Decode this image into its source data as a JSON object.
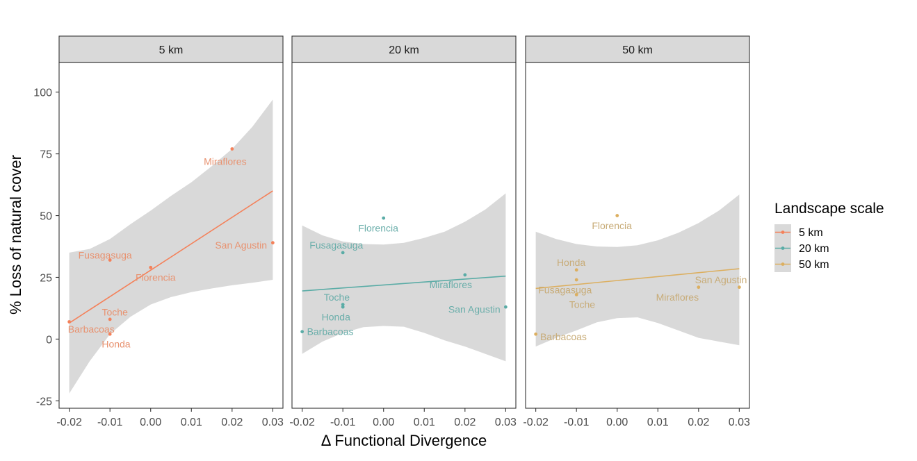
{
  "chart_data": {
    "type": "scatter",
    "xlabel": "Δ Functional Divergence",
    "ylabel": "% Loss of natural cover",
    "xlim": [
      -0.0225,
      0.0325
    ],
    "ylim": [
      -28,
      112
    ],
    "x_ticks": [
      -0.02,
      -0.01,
      0.0,
      0.01,
      0.02,
      0.03
    ],
    "x_tick_labels": [
      "-0.02",
      "-0.01",
      "0.00",
      "0.01",
      "0.02",
      "0.03"
    ],
    "y_ticks": [
      100,
      75,
      50,
      25,
      0,
      -25
    ],
    "y_tick_labels": [
      "100",
      "75",
      "50",
      "25",
      "0",
      "-25"
    ],
    "legend": {
      "title": "Landscape scale",
      "entries": [
        {
          "label": "5 km",
          "color": "#f4815a"
        },
        {
          "label": "20 km",
          "color": "#5aaca6"
        },
        {
          "label": "50 km",
          "color": "#dcaf60"
        }
      ]
    },
    "band_color": "#d9d9d9",
    "strip_color": "#d9d9d9",
    "panels": [
      {
        "title": "5 km",
        "color": "#f4815a",
        "label_color": "#e89270",
        "points": [
          {
            "name": "Miraflores",
            "x": 0.02,
            "y": 77,
            "lx": 0.0183,
            "ly": 72
          },
          {
            "name": "San Agustin",
            "x": 0.03,
            "y": 39,
            "lx": 0.0222,
            "ly": 38
          },
          {
            "name": "Fusagasuga",
            "x": -0.01,
            "y": 32,
            "lx": -0.0112,
            "ly": 34
          },
          {
            "name": "Florencia",
            "x": 0.0,
            "y": 29,
            "lx": 0.0012,
            "ly": 25
          },
          {
            "name": "Toche",
            "x": -0.01,
            "y": 8,
            "lx": -0.0088,
            "ly": 11
          },
          {
            "name": "Barbacoas",
            "x": -0.02,
            "y": 7,
            "lx": -0.0146,
            "ly": 4
          },
          {
            "name": "Honda",
            "x": -0.01,
            "y": 2,
            "lx": -0.0085,
            "ly": -2
          }
        ],
        "fit": {
          "x1": -0.02,
          "y1": 6.5,
          "x2": 0.03,
          "y2": 60
        },
        "band_upper": [
          [
            -0.02,
            35
          ],
          [
            -0.015,
            36.5
          ],
          [
            -0.01,
            40.5
          ],
          [
            -0.005,
            46.5
          ],
          [
            0.0,
            52
          ],
          [
            0.005,
            58
          ],
          [
            0.01,
            63.5
          ],
          [
            0.015,
            70
          ],
          [
            0.02,
            77
          ],
          [
            0.025,
            86
          ],
          [
            0.03,
            97
          ]
        ],
        "band_lower": [
          [
            -0.02,
            -22
          ],
          [
            -0.015,
            -9
          ],
          [
            -0.01,
            2
          ],
          [
            -0.005,
            9
          ],
          [
            0.0,
            14
          ],
          [
            0.005,
            17
          ],
          [
            0.01,
            19
          ],
          [
            0.015,
            20.5
          ],
          [
            0.02,
            21.8
          ],
          [
            0.025,
            22.8
          ],
          [
            0.03,
            24
          ]
        ]
      },
      {
        "title": "20 km",
        "color": "#5aaca6",
        "label_color": "#6aaeaa",
        "points": [
          {
            "name": "Florencia",
            "x": 0.0,
            "y": 49,
            "lx": -0.0013,
            "ly": 45
          },
          {
            "name": "Fusagasuga",
            "x": -0.01,
            "y": 35,
            "lx": -0.0116,
            "ly": 38
          },
          {
            "name": "Miraflores",
            "x": 0.02,
            "y": 26,
            "lx": 0.0165,
            "ly": 22
          },
          {
            "name": "Toche",
            "x": -0.01,
            "y": 14,
            "lx": -0.0115,
            "ly": 17
          },
          {
            "name": "Honda",
            "x": -0.01,
            "y": 13,
            "lx": -0.0117,
            "ly": 9
          },
          {
            "name": "San Agustin",
            "x": 0.03,
            "y": 13,
            "lx": 0.0223,
            "ly": 12
          },
          {
            "name": "Barbacoas",
            "x": -0.02,
            "y": 3,
            "lx": -0.0131,
            "ly": 3
          }
        ],
        "fit": {
          "x1": -0.02,
          "y1": 19.5,
          "x2": 0.03,
          "y2": 25.5
        },
        "band_upper": [
          [
            -0.02,
            46
          ],
          [
            -0.015,
            42
          ],
          [
            -0.01,
            39.5
          ],
          [
            -0.005,
            38.5
          ],
          [
            0.0,
            38.3
          ],
          [
            0.005,
            39
          ],
          [
            0.01,
            41
          ],
          [
            0.015,
            43.5
          ],
          [
            0.02,
            47.5
          ],
          [
            0.025,
            52.5
          ],
          [
            0.03,
            59
          ]
        ],
        "band_lower": [
          [
            -0.02,
            -6
          ],
          [
            -0.015,
            -1
          ],
          [
            -0.01,
            2.5
          ],
          [
            -0.005,
            4.8
          ],
          [
            0.0,
            5.3
          ],
          [
            0.005,
            5
          ],
          [
            0.01,
            2.5
          ],
          [
            0.015,
            -0.5
          ],
          [
            0.02,
            -3
          ],
          [
            0.025,
            -6
          ],
          [
            0.03,
            -9
          ]
        ]
      },
      {
        "title": "50 km",
        "color": "#dcaf60",
        "label_color": "#c8ac78",
        "points": [
          {
            "name": "Florencia",
            "x": 0.0,
            "y": 50,
            "lx": -0.0013,
            "ly": 46
          },
          {
            "name": "Honda",
            "x": -0.01,
            "y": 28,
            "lx": -0.0113,
            "ly": 31
          },
          {
            "name": "Fusagasuga",
            "x": -0.01,
            "y": 24,
            "lx": -0.0128,
            "ly": 20
          },
          {
            "name": "San Agustin",
            "x": 0.03,
            "y": 21,
            "lx": 0.0255,
            "ly": 24
          },
          {
            "name": "Miraflores",
            "x": 0.02,
            "y": 21,
            "lx": 0.0148,
            "ly": 17
          },
          {
            "name": "Toche",
            "x": -0.01,
            "y": 18,
            "lx": -0.0086,
            "ly": 14
          },
          {
            "name": "Barbacoas",
            "x": -0.02,
            "y": 2,
            "lx": -0.0132,
            "ly": 1
          }
        ],
        "fit": {
          "x1": -0.02,
          "y1": 20.5,
          "x2": 0.03,
          "y2": 28.5
        },
        "band_upper": [
          [
            -0.02,
            43.5
          ],
          [
            -0.015,
            40.5
          ],
          [
            -0.01,
            38.5
          ],
          [
            -0.005,
            37.5
          ],
          [
            0.0,
            37.3
          ],
          [
            0.005,
            38
          ],
          [
            0.01,
            40
          ],
          [
            0.015,
            43
          ],
          [
            0.02,
            47
          ],
          [
            0.025,
            52
          ],
          [
            0.03,
            58.5
          ]
        ],
        "band_lower": [
          [
            -0.02,
            -3
          ],
          [
            -0.015,
            0.5
          ],
          [
            -0.01,
            3.5
          ],
          [
            -0.005,
            6.8
          ],
          [
            0.0,
            8.5
          ],
          [
            0.005,
            8.8
          ],
          [
            0.01,
            6.5
          ],
          [
            0.015,
            3.5
          ],
          [
            0.02,
            0.5
          ],
          [
            0.025,
            -1
          ],
          [
            0.03,
            -2.5
          ]
        ]
      }
    ]
  }
}
